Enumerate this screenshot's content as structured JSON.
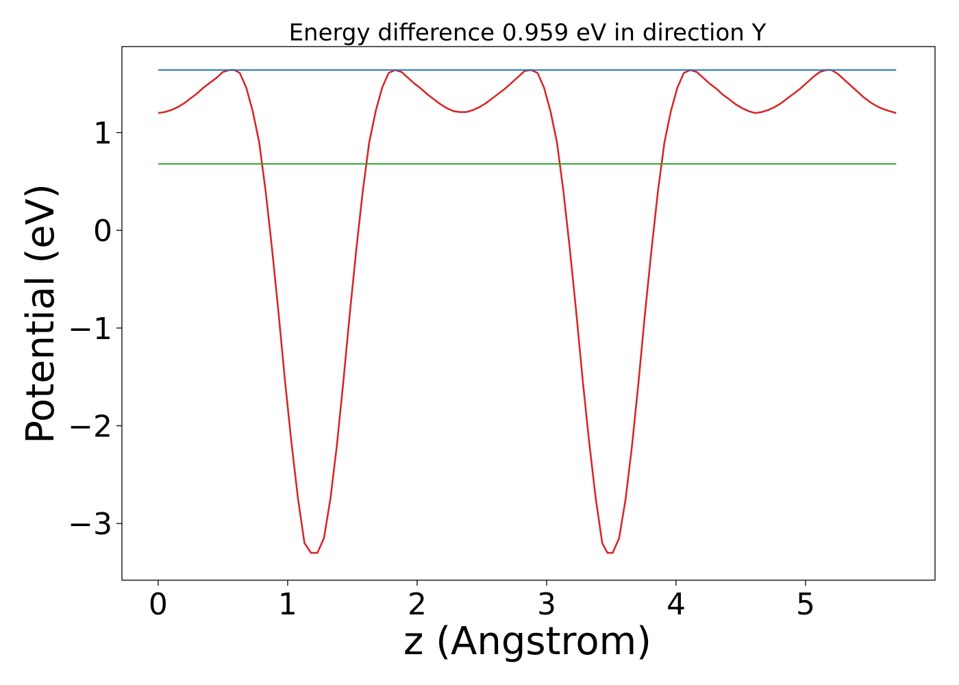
{
  "chart_data": {
    "type": "line",
    "title": "Energy difference 0.959 eV in direction Y",
    "xlabel": "z (Angstrom)",
    "ylabel": "Potential (eV)",
    "xlim": [
      -0.28,
      6.0
    ],
    "ylim": [
      -3.58,
      1.88
    ],
    "xticks": [
      0,
      1,
      2,
      3,
      4,
      5
    ],
    "xtick_labels": [
      "0",
      "1",
      "2",
      "3",
      "4",
      "5"
    ],
    "yticks": [
      -3,
      -2,
      -1,
      0,
      1
    ],
    "ytick_labels": [
      "−3",
      "−2",
      "−1",
      "0",
      "1"
    ],
    "grid": false,
    "series": [
      {
        "color": "#d62728",
        "x": [
          0.0,
          0.05,
          0.1,
          0.15,
          0.2,
          0.25,
          0.3,
          0.35,
          0.4,
          0.45,
          0.5,
          0.55,
          0.59,
          0.63,
          0.68,
          0.73,
          0.78,
          0.83,
          0.88,
          0.93,
          0.98,
          1.03,
          1.08,
          1.13,
          1.18,
          1.23,
          1.28,
          1.33,
          1.38,
          1.43,
          1.48,
          1.53,
          1.58,
          1.63,
          1.68,
          1.73,
          1.78,
          1.83,
          1.88,
          1.93,
          1.98,
          2.03,
          2.08,
          2.13,
          2.18,
          2.23,
          2.28,
          2.33,
          2.38,
          2.43,
          2.48,
          2.53,
          2.58,
          2.63,
          2.68,
          2.73,
          2.78,
          2.83,
          2.88,
          2.93,
          2.98,
          3.03,
          3.08,
          3.13,
          3.18,
          3.23,
          3.28,
          3.33,
          3.38,
          3.43,
          3.47,
          3.51,
          3.56,
          3.61,
          3.66,
          3.71,
          3.76,
          3.81,
          3.86,
          3.91,
          3.96,
          4.01,
          4.06,
          4.11,
          4.16,
          4.21,
          4.26,
          4.31,
          4.36,
          4.41,
          4.46,
          4.51,
          4.56,
          4.61,
          4.66,
          4.71,
          4.76,
          4.81,
          4.86,
          4.91,
          4.96,
          5.01,
          5.06,
          5.11,
          5.16,
          5.2,
          5.25,
          5.3,
          5.35,
          5.4,
          5.45,
          5.5,
          5.55,
          5.6,
          5.65,
          5.7
        ],
        "y": [
          1.2,
          1.21,
          1.23,
          1.26,
          1.3,
          1.35,
          1.4,
          1.46,
          1.51,
          1.56,
          1.62,
          1.64,
          1.64,
          1.61,
          1.46,
          1.22,
          0.9,
          0.4,
          -0.2,
          -0.85,
          -1.55,
          -2.18,
          -2.75,
          -3.2,
          -3.3,
          -3.3,
          -3.15,
          -2.75,
          -2.2,
          -1.55,
          -0.85,
          -0.2,
          0.4,
          0.9,
          1.22,
          1.46,
          1.61,
          1.64,
          1.62,
          1.56,
          1.5,
          1.45,
          1.39,
          1.34,
          1.29,
          1.25,
          1.22,
          1.21,
          1.21,
          1.23,
          1.26,
          1.3,
          1.35,
          1.4,
          1.45,
          1.51,
          1.57,
          1.63,
          1.64,
          1.61,
          1.46,
          1.22,
          0.9,
          0.4,
          -0.2,
          -0.85,
          -1.55,
          -2.18,
          -2.75,
          -3.2,
          -3.3,
          -3.3,
          -3.15,
          -2.75,
          -2.2,
          -1.55,
          -0.85,
          -0.2,
          0.4,
          0.9,
          1.22,
          1.46,
          1.61,
          1.64,
          1.62,
          1.56,
          1.5,
          1.45,
          1.39,
          1.34,
          1.29,
          1.25,
          1.22,
          1.2,
          1.21,
          1.23,
          1.26,
          1.3,
          1.35,
          1.4,
          1.45,
          1.51,
          1.57,
          1.62,
          1.64,
          1.64,
          1.6,
          1.54,
          1.48,
          1.42,
          1.36,
          1.31,
          1.27,
          1.24,
          1.22,
          1.2
        ]
      },
      {
        "color": "#1f77b4",
        "x": [
          0.0,
          5.7
        ],
        "y": [
          1.64,
          1.64
        ]
      },
      {
        "color": "#2ca02c",
        "x": [
          0.0,
          5.7
        ],
        "y": [
          0.68,
          0.68
        ]
      }
    ]
  }
}
